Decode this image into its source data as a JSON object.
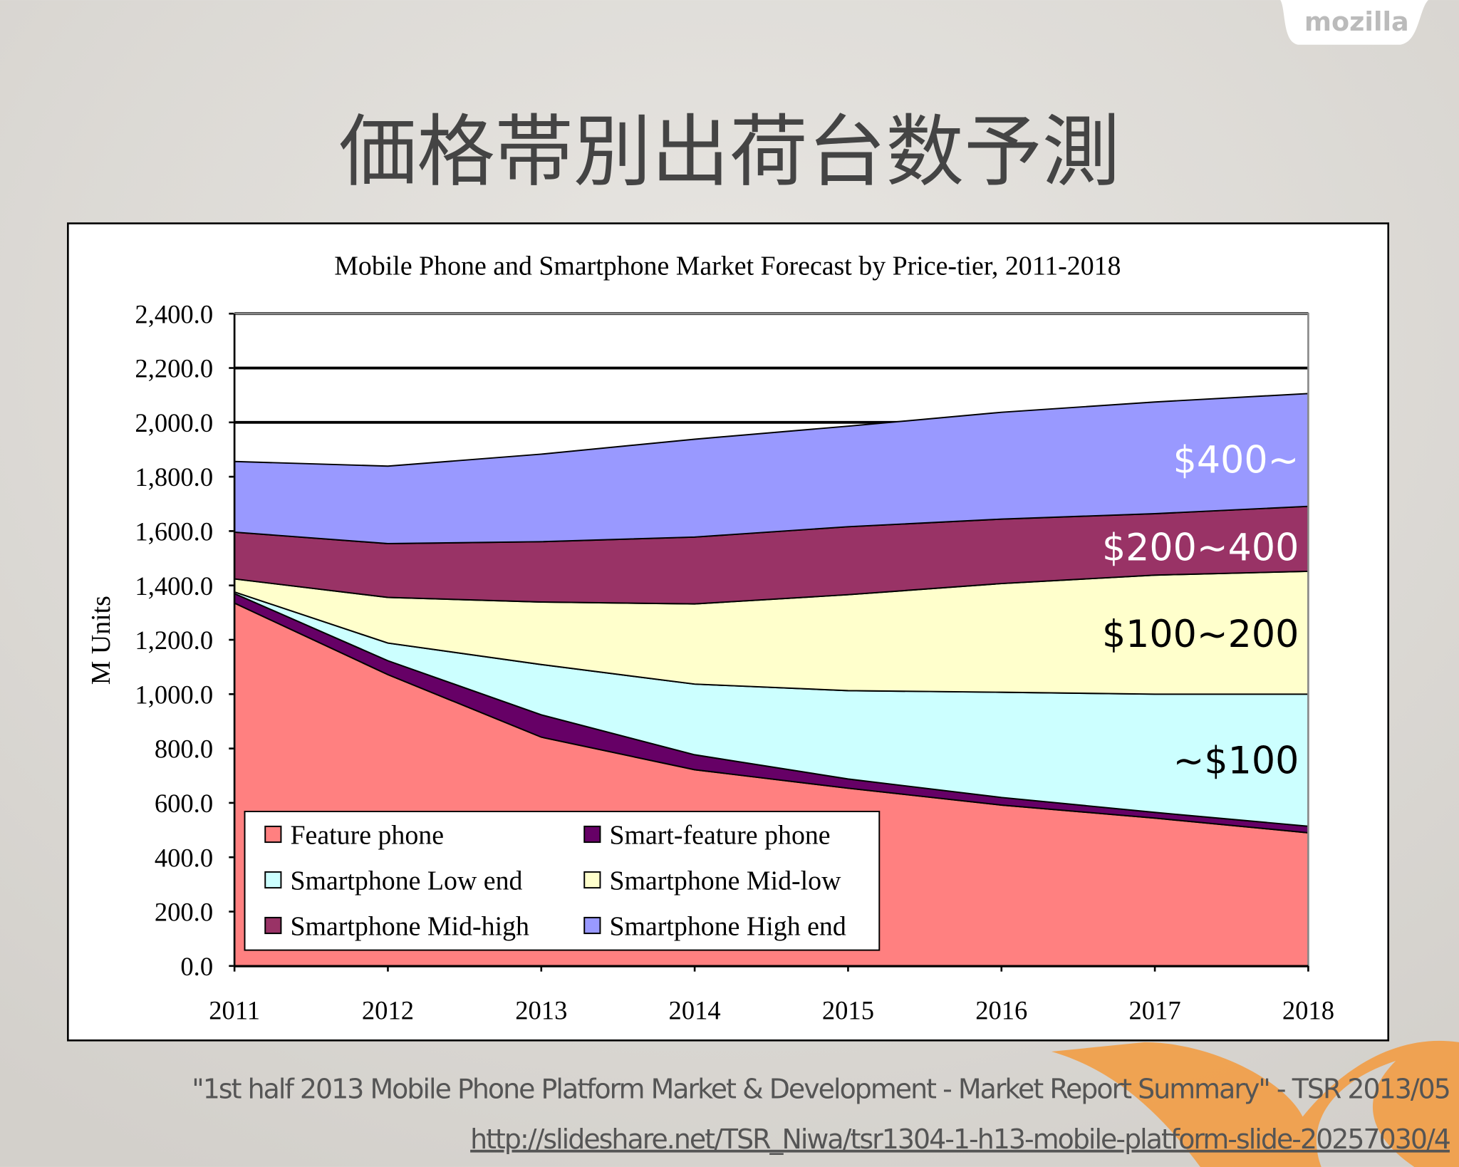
{
  "slide": {
    "title": "価格帯別出荷台数予測",
    "logo": "mozilla",
    "source": "\"1st half 2013 Mobile Phone Platform Market & Development - Market Report Summary\" - TSR 2013/05",
    "url": "http://slideshare.net/TSR_Niwa/tsr1304-1-h13-mobile-platform-slide-20257030/4"
  },
  "chart_data": {
    "type": "stacked_area",
    "title": "Mobile Phone and Smartphone Market Forecast by Price-tier, 2011-2018",
    "y_label": "M Units",
    "categories": [
      "2011",
      "2012",
      "2013",
      "2014",
      "2015",
      "2016",
      "2017",
      "2018"
    ],
    "series": [
      {
        "name": "Feature phone",
        "color": "#ff8080",
        "values": [
          1335,
          1072,
          842,
          722,
          654,
          592,
          544,
          490
        ]
      },
      {
        "name": "Smart-feature phone",
        "color": "#660066",
        "values": [
          35,
          51,
          82,
          55,
          34,
          28,
          21,
          24
        ]
      },
      {
        "name": "Smartphone Low end",
        "color": "#ccffff",
        "values": [
          6,
          65,
          185,
          260,
          325,
          387,
          435,
          486
        ]
      },
      {
        "name": "Smartphone Mid-low",
        "color": "#ffffcc",
        "values": [
          48,
          168,
          230,
          295,
          353,
          400,
          438,
          452
        ]
      },
      {
        "name": "Smartphone Mid-high",
        "color": "#993366",
        "values": [
          172,
          198,
          222,
          246,
          250,
          237,
          226,
          239
        ]
      },
      {
        "name": "Smartphone High end",
        "color": "#9999ff",
        "values": [
          260,
          285,
          322,
          360,
          370,
          393,
          411,
          415
        ]
      }
    ],
    "ylim": [
      0,
      2400
    ],
    "yticks": [
      {
        "value": 0,
        "label": "0.0"
      },
      {
        "value": 200,
        "label": "200.0"
      },
      {
        "value": 400,
        "label": "400.0"
      },
      {
        "value": 600,
        "label": "600.0"
      },
      {
        "value": 800,
        "label": "800.0"
      },
      {
        "value": 1000,
        "label": "1,000.0"
      },
      {
        "value": 1200,
        "label": "1,200.0"
      },
      {
        "value": 1400,
        "label": "1,400.0"
      },
      {
        "value": 1600,
        "label": "1,600.0"
      },
      {
        "value": 1800,
        "label": "1,800.0"
      },
      {
        "value": 2000,
        "label": "2,000.0"
      },
      {
        "value": 2200,
        "label": "2,200.0"
      },
      {
        "value": 2400,
        "label": "2,400.0"
      }
    ],
    "grid": true,
    "annotations": [
      "$400~",
      "$200~400",
      "$100~200",
      "~$100"
    ]
  }
}
